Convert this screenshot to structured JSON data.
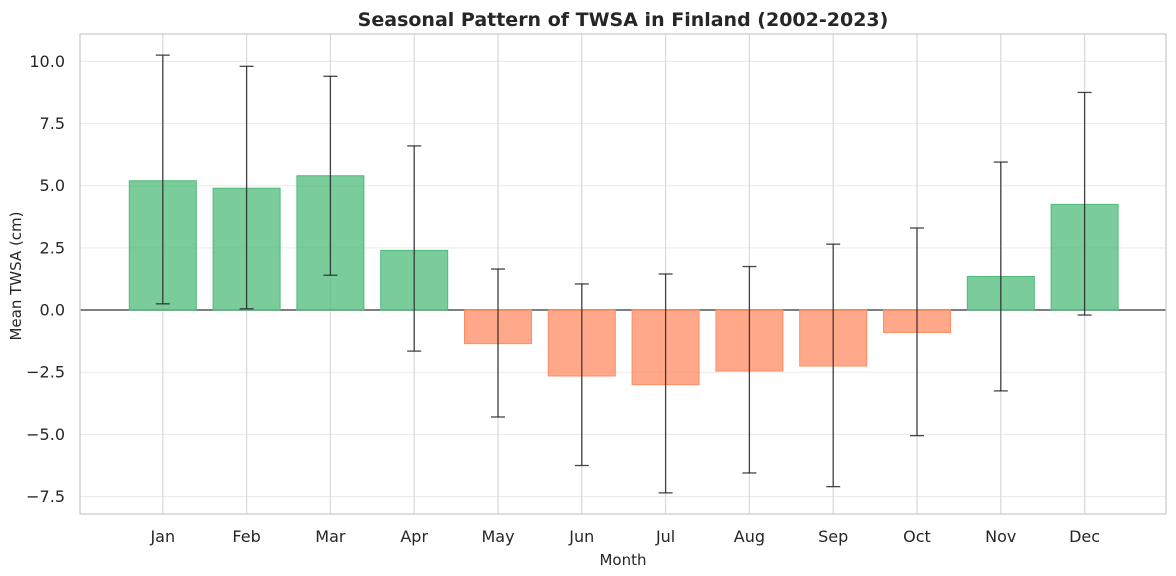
{
  "chart_data": {
    "type": "bar",
    "title": "Seasonal Pattern of TWSA in Finland (2002-2023)",
    "xlabel": "Month",
    "ylabel": "Mean TWSA (cm)",
    "categories": [
      "Jan",
      "Feb",
      "Mar",
      "Apr",
      "May",
      "Jun",
      "Jul",
      "Aug",
      "Sep",
      "Oct",
      "Nov",
      "Dec"
    ],
    "values": [
      5.2,
      4.9,
      5.4,
      2.4,
      -1.35,
      -2.65,
      -3.0,
      -2.45,
      -2.25,
      -0.9,
      1.35,
      4.25
    ],
    "error_low": [
      0.25,
      0.05,
      1.4,
      -1.65,
      -4.3,
      -6.25,
      -7.35,
      -6.55,
      -7.1,
      -5.05,
      -3.25,
      -0.2
    ],
    "error_high": [
      10.25,
      9.8,
      9.4,
      6.6,
      1.65,
      1.05,
      1.45,
      1.75,
      2.65,
      3.3,
      5.95,
      8.75
    ],
    "ylim": [
      -8.2,
      11.1
    ],
    "yticks": [
      -7.5,
      -5.0,
      -2.5,
      0.0,
      2.5,
      5.0,
      7.5,
      10.0
    ],
    "ytick_labels": [
      "−7.5",
      "−5.0",
      "−2.5",
      "0.0",
      "2.5",
      "5.0",
      "7.5",
      "10.0"
    ],
    "grid": true,
    "colors": {
      "positive": "#4dbb7a",
      "negative": "#ff8c63",
      "error_bar": "#262626",
      "zero_line": "#555555",
      "grid": "#d9d9d9",
      "frame": "#cccccc"
    }
  }
}
